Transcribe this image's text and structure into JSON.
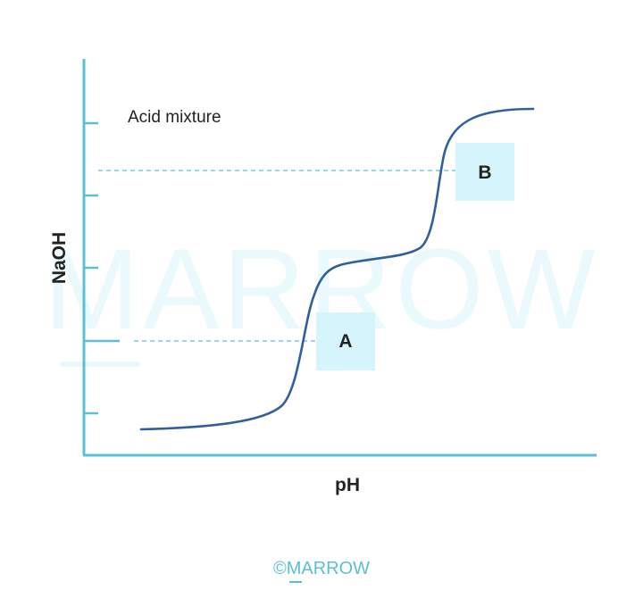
{
  "title": "Acid mixture",
  "axes": {
    "y_label": "NaOH",
    "x_label": "pH"
  },
  "markers": {
    "a_label": "A",
    "b_label": "B"
  },
  "watermark": "MARROW",
  "copyright": "©MARROW",
  "colors": {
    "axis": "#5bc0d3",
    "curve": "#2e5f9e",
    "marker_fill": "#d5f4fb",
    "guide": "#5bc0d3",
    "watermark": "#e9f9fd",
    "text": "#222222",
    "copyright": "#5bc0d3"
  }
}
